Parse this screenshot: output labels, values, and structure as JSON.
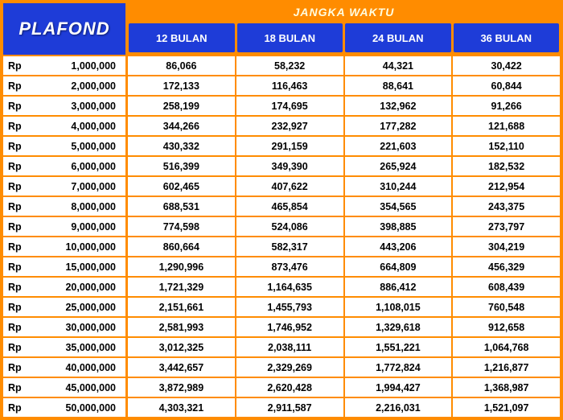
{
  "styling": {
    "frame_border_color": "#ff8c00",
    "header_bg_color": "#1e3cd8",
    "header_text_color": "#ffffff",
    "jangka_bg_color": "#ff8c00",
    "jangka_text_color": "#fffde0",
    "cell_bg_color": "#ffffff",
    "cell_text_color": "#000000",
    "grid_line_color": "#ff8c00",
    "plafond_fontsize": 22,
    "period_header_fontsize": 13,
    "jangka_title_fontsize": 14,
    "cell_fontsize": 12.5,
    "plafond_col_width": 155
  },
  "headers": {
    "plafond_label": "PLAFOND",
    "jangka_waktu_label": "JANGKA WAKTU",
    "currency_prefix": "Rp",
    "periods": [
      "12 BULAN",
      "18 BULAN",
      "24 BULAN",
      "36 BULAN"
    ]
  },
  "table": {
    "rows": [
      {
        "plafond": "1,000,000",
        "values": [
          "86,066",
          "58,232",
          "44,321",
          "30,422"
        ]
      },
      {
        "plafond": "2,000,000",
        "values": [
          "172,133",
          "116,463",
          "88,641",
          "60,844"
        ]
      },
      {
        "plafond": "3,000,000",
        "values": [
          "258,199",
          "174,695",
          "132,962",
          "91,266"
        ]
      },
      {
        "plafond": "4,000,000",
        "values": [
          "344,266",
          "232,927",
          "177,282",
          "121,688"
        ]
      },
      {
        "plafond": "5,000,000",
        "values": [
          "430,332",
          "291,159",
          "221,603",
          "152,110"
        ]
      },
      {
        "plafond": "6,000,000",
        "values": [
          "516,399",
          "349,390",
          "265,924",
          "182,532"
        ]
      },
      {
        "plafond": "7,000,000",
        "values": [
          "602,465",
          "407,622",
          "310,244",
          "212,954"
        ]
      },
      {
        "plafond": "8,000,000",
        "values": [
          "688,531",
          "465,854",
          "354,565",
          "243,375"
        ]
      },
      {
        "plafond": "9,000,000",
        "values": [
          "774,598",
          "524,086",
          "398,885",
          "273,797"
        ]
      },
      {
        "plafond": "10,000,000",
        "values": [
          "860,664",
          "582,317",
          "443,206",
          "304,219"
        ]
      },
      {
        "plafond": "15,000,000",
        "values": [
          "1,290,996",
          "873,476",
          "664,809",
          "456,329"
        ]
      },
      {
        "plafond": "20,000,000",
        "values": [
          "1,721,329",
          "1,164,635",
          "886,412",
          "608,439"
        ]
      },
      {
        "plafond": "25,000,000",
        "values": [
          "2,151,661",
          "1,455,793",
          "1,108,015",
          "760,548"
        ]
      },
      {
        "plafond": "30,000,000",
        "values": [
          "2,581,993",
          "1,746,952",
          "1,329,618",
          "912,658"
        ]
      },
      {
        "plafond": "35,000,000",
        "values": [
          "3,012,325",
          "2,038,111",
          "1,551,221",
          "1,064,768"
        ]
      },
      {
        "plafond": "40,000,000",
        "values": [
          "3,442,657",
          "2,329,269",
          "1,772,824",
          "1,216,877"
        ]
      },
      {
        "plafond": "45,000,000",
        "values": [
          "3,872,989",
          "2,620,428",
          "1,994,427",
          "1,368,987"
        ]
      },
      {
        "plafond": "50,000,000",
        "values": [
          "4,303,321",
          "2,911,587",
          "2,216,031",
          "1,521,097"
        ]
      }
    ]
  }
}
